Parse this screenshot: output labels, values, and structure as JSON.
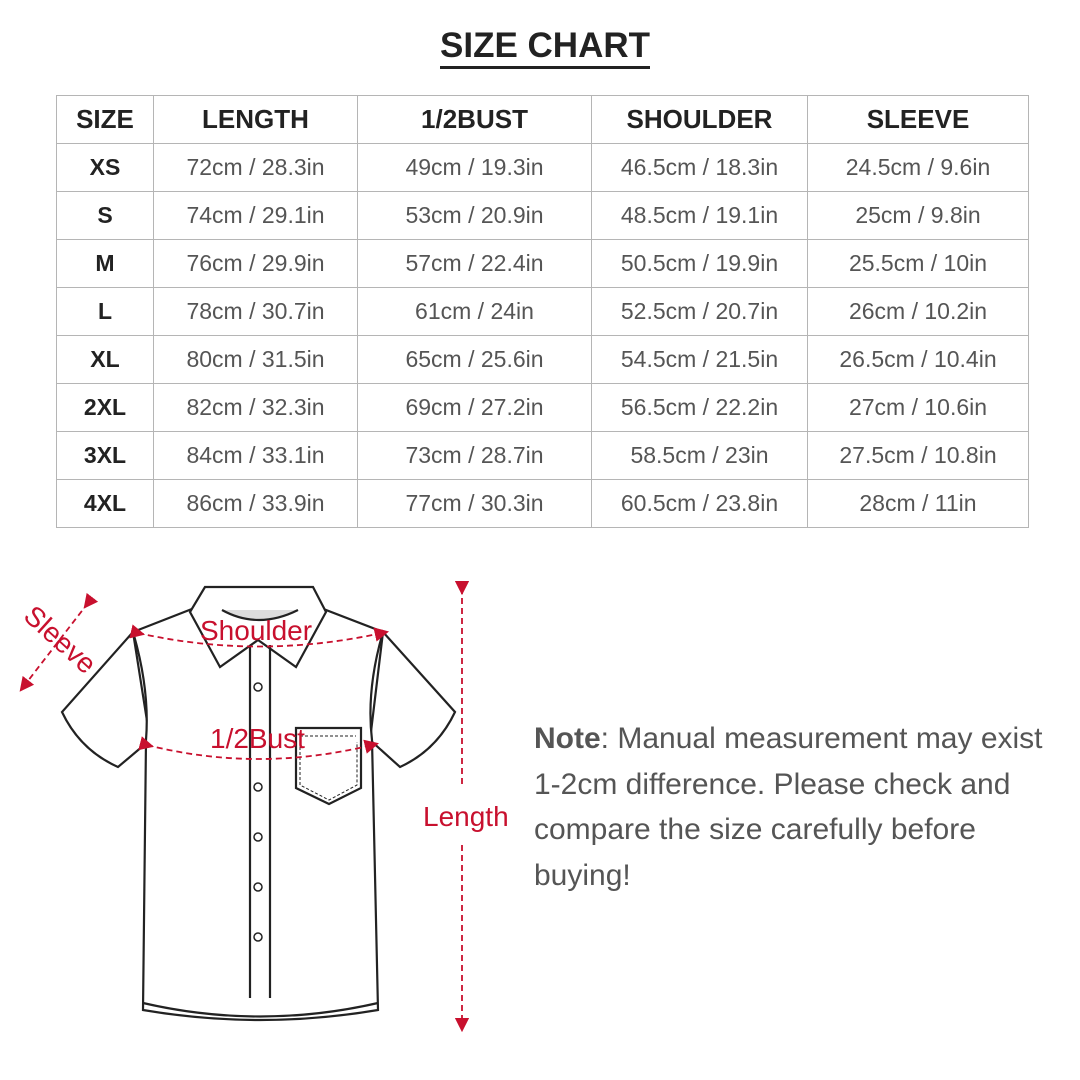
{
  "title": "SIZE CHART",
  "table": {
    "headers": [
      "SIZE",
      "LENGTH",
      "1/2BUST",
      "SHOULDER",
      "SLEEVE"
    ],
    "rows": [
      [
        "XS",
        "72cm / 28.3in",
        "49cm / 19.3in",
        "46.5cm / 18.3in",
        "24.5cm / 9.6in"
      ],
      [
        "S",
        "74cm / 29.1in",
        "53cm / 20.9in",
        "48.5cm / 19.1in",
        "25cm / 9.8in"
      ],
      [
        "M",
        "76cm / 29.9in",
        "57cm / 22.4in",
        "50.5cm / 19.9in",
        "25.5cm / 10in"
      ],
      [
        "L",
        "78cm / 30.7in",
        "61cm / 24in",
        "52.5cm / 20.7in",
        "26cm / 10.2in"
      ],
      [
        "XL",
        "80cm / 31.5in",
        "65cm / 25.6in",
        "54.5cm / 21.5in",
        "26.5cm / 10.4in"
      ],
      [
        "2XL",
        "82cm / 32.3in",
        "69cm / 27.2in",
        "56.5cm / 22.2in",
        "27cm / 10.6in"
      ],
      [
        "3XL",
        "84cm / 33.1in",
        "73cm / 28.7in",
        "58.5cm / 23in",
        "27.5cm / 10.8in"
      ],
      [
        "4XL",
        "86cm / 33.9in",
        "77cm / 30.3in",
        "60.5cm / 23.8in",
        "28cm / 11in"
      ]
    ]
  },
  "diagram": {
    "labels": {
      "sleeve": "Sleeve",
      "shoulder": "Shoulder",
      "bust": "1/2Bust",
      "length": "Length"
    },
    "accent_color": "#c8102e"
  },
  "note": {
    "label": "Note",
    "text": ": Manual measurement may exist 1-2cm difference. Please check and compare the size carefully before buying!"
  }
}
